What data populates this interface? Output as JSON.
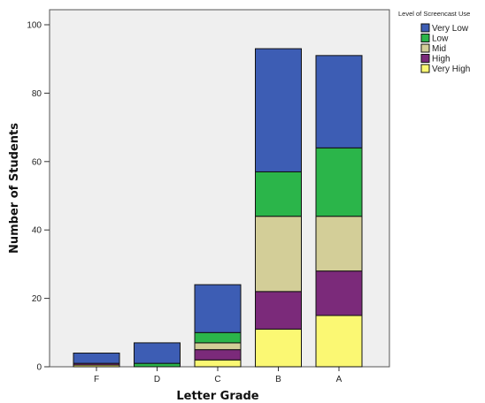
{
  "chart_data": {
    "type": "bar",
    "stacked": true,
    "xlabel": "Letter Grade",
    "ylabel": "Number of Students",
    "ylim": [
      0,
      105
    ],
    "yticks": [
      0,
      20,
      40,
      60,
      80,
      100
    ],
    "categories": [
      "F",
      "D",
      "C",
      "B",
      "A"
    ],
    "legend": {
      "title": "Level of Screencast Use",
      "position": "top-right"
    },
    "series": [
      {
        "name": "Very High",
        "color": "#fbf873",
        "values": [
          0.5,
          0,
          2,
          11,
          15
        ]
      },
      {
        "name": "High",
        "color": "#7b2a7a",
        "values": [
          0.5,
          0,
          3,
          11,
          13
        ]
      },
      {
        "name": "Mid",
        "color": "#d3ce98",
        "values": [
          0,
          0,
          2,
          22,
          16
        ]
      },
      {
        "name": "Low",
        "color": "#2bb54a",
        "values": [
          0,
          1,
          3,
          13,
          20
        ]
      },
      {
        "name": "Very Low",
        "color": "#3d5db4",
        "values": [
          3,
          6,
          14,
          36,
          27
        ]
      }
    ],
    "legend_order": [
      "Very Low",
      "Low",
      "Mid",
      "High",
      "Very High"
    ],
    "plot_background": "#efefef",
    "grid": false
  }
}
